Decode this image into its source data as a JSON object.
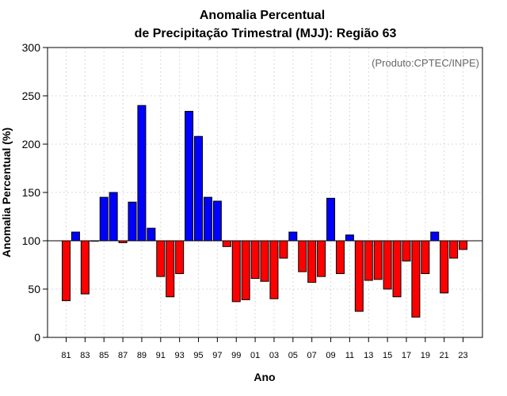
{
  "chart_data": {
    "type": "bar",
    "title_line1": "Anomalia Percentual",
    "title_line2": "de Precipitação Trimestral (MJJ): Região 63",
    "credit": "(Produto:CPTEC/INPE)",
    "xlabel": "Ano",
    "ylabel": "Anomalia Percentual (%)",
    "ylim": [
      0,
      300
    ],
    "yticks": [
      0,
      50,
      100,
      150,
      200,
      250,
      300
    ],
    "baseline": 100,
    "categories": [
      "81",
      "82",
      "83",
      "84",
      "85",
      "86",
      "87",
      "88",
      "89",
      "90",
      "91",
      "92",
      "93",
      "94",
      "95",
      "96",
      "97",
      "98",
      "99",
      "00",
      "01",
      "02",
      "03",
      "04",
      "05",
      "06",
      "07",
      "08",
      "09",
      "10",
      "11",
      "12",
      "13",
      "14",
      "15",
      "16",
      "17",
      "18",
      "19",
      "20",
      "21",
      "22",
      "23"
    ],
    "xtick_labels": [
      "81",
      "83",
      "85",
      "87",
      "89",
      "91",
      "93",
      "95",
      "97",
      "99",
      "01",
      "03",
      "05",
      "07",
      "09",
      "11",
      "13",
      "15",
      "17",
      "19",
      "21",
      "23"
    ],
    "values": [
      38,
      109,
      45,
      100,
      145,
      150,
      98,
      140,
      240,
      113,
      63,
      42,
      66,
      234,
      208,
      145,
      141,
      94,
      37,
      39,
      61,
      58,
      40,
      82,
      109,
      68,
      57,
      63,
      144,
      66,
      106,
      27,
      59,
      60,
      50,
      42,
      79,
      21,
      66,
      109,
      46,
      82,
      91
    ],
    "colors": {
      "above": "#0000ff",
      "below": "#ff0000"
    },
    "grid": true
  }
}
